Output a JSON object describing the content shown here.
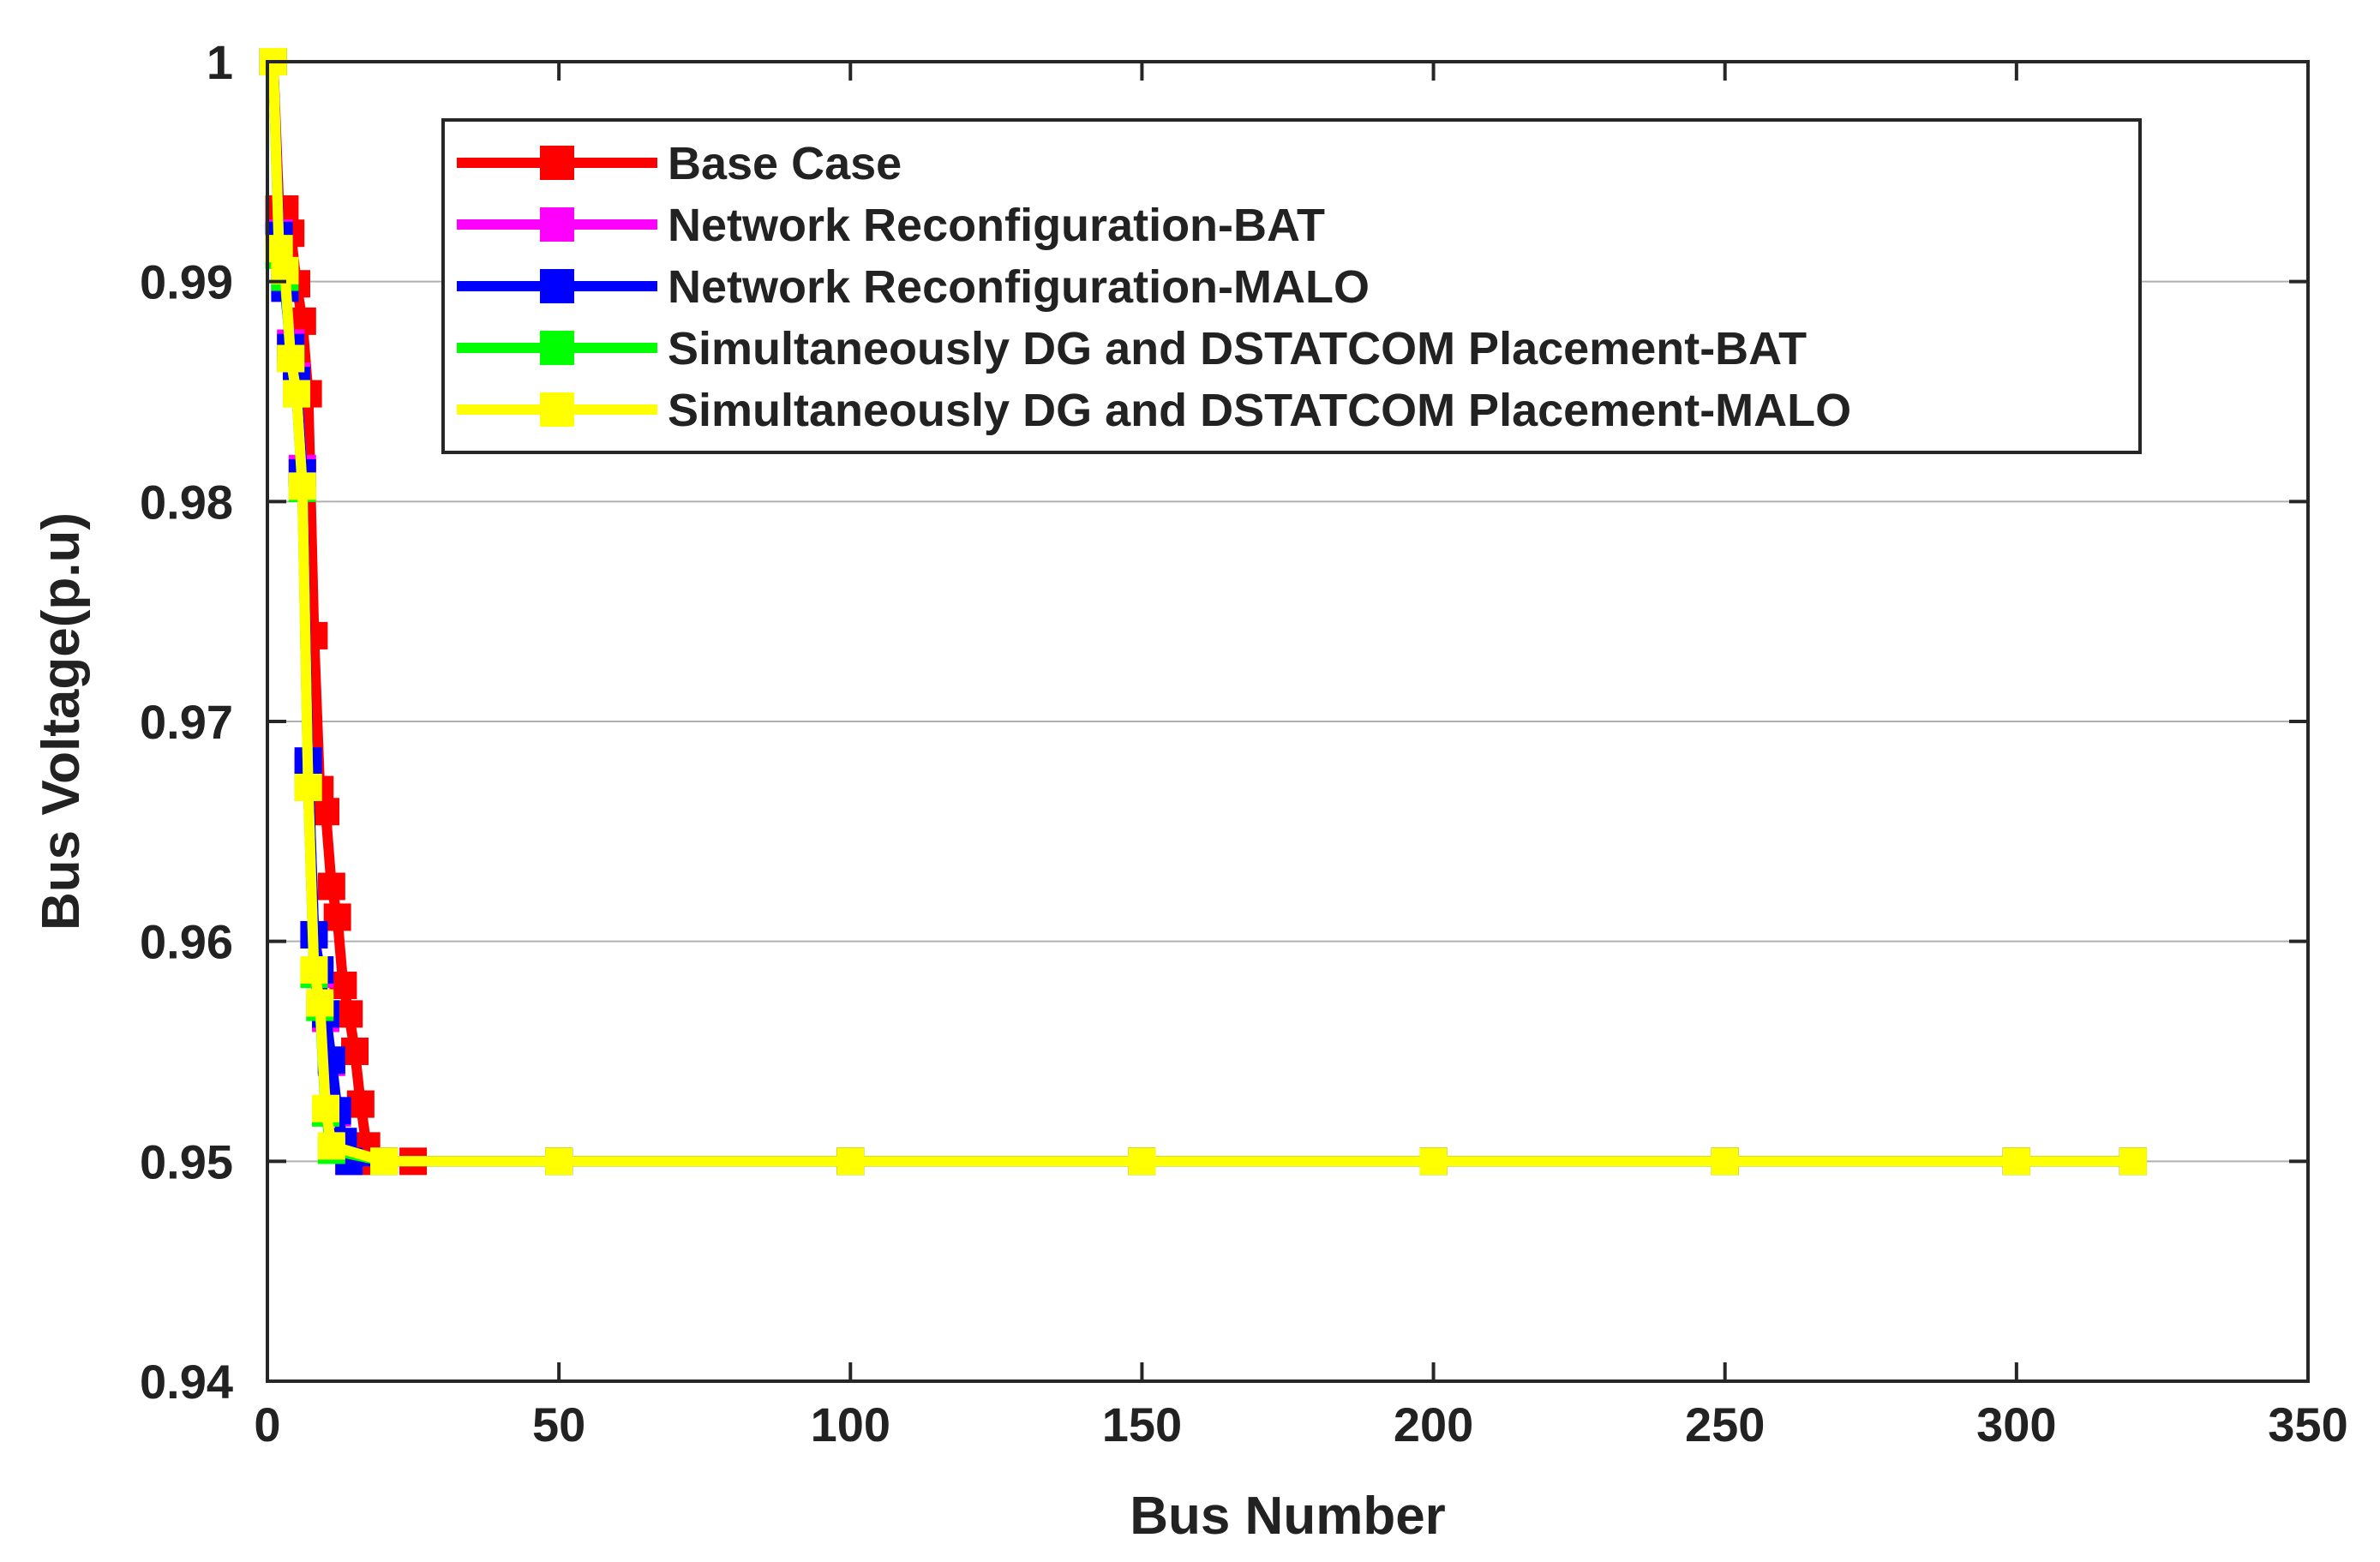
{
  "chart_data": {
    "type": "line",
    "xlabel": "Bus Number",
    "ylabel": "Bus Voltage(p.u)",
    "xlim": [
      0,
      350
    ],
    "ylim": [
      0.94,
      1.0
    ],
    "xticks": [
      0,
      50,
      100,
      150,
      200,
      250,
      300,
      350
    ],
    "xtick_labels": [
      "0",
      "50",
      "100",
      "150",
      "200",
      "250",
      "300",
      "350"
    ],
    "yticks": [
      0.94,
      0.95,
      0.96,
      0.97,
      0.98,
      0.99,
      1.0
    ],
    "ytick_labels": [
      "0.94",
      "0.95",
      "0.96",
      "0.97",
      "0.98",
      "0.99",
      "1"
    ],
    "grid": "horizontal",
    "legend_position": "top-right",
    "series": [
      {
        "name": "Base Case",
        "color": "#ff0000",
        "marker": "square",
        "x": [
          1,
          2,
          3,
          4,
          5,
          6,
          7,
          8,
          9,
          10,
          11,
          12,
          13,
          14,
          15,
          16,
          17,
          18,
          20,
          25,
          50,
          100,
          150,
          200,
          250,
          300,
          320
        ],
        "y": [
          1.0,
          0.9933,
          0.9933,
          0.9922,
          0.9899,
          0.9882,
          0.9849,
          0.9739,
          0.9669,
          0.9659,
          0.9625,
          0.9611,
          0.958,
          0.9567,
          0.955,
          0.9526,
          0.9507,
          0.95,
          0.95,
          0.95,
          0.95,
          0.95,
          0.95,
          0.95,
          0.95,
          0.95,
          0.95
        ]
      },
      {
        "name": "Network Reconfiguration-BAT",
        "color": "#ff00ff",
        "marker": "square",
        "x": [
          1,
          2,
          3,
          4,
          5,
          6,
          7,
          8,
          9,
          10,
          11,
          12,
          13,
          14,
          20,
          50,
          100,
          150,
          200,
          250,
          300,
          320
        ],
        "y": [
          1.0,
          0.9922,
          0.9899,
          0.9872,
          0.9857,
          0.9815,
          0.968,
          0.9603,
          0.9585,
          0.9565,
          0.9545,
          0.9522,
          0.9508,
          0.95,
          0.95,
          0.95,
          0.95,
          0.95,
          0.95,
          0.95,
          0.95,
          0.95
        ]
      },
      {
        "name": "Network Reconfiguration-MALO",
        "color": "#0000ff",
        "marker": "square",
        "x": [
          1,
          2,
          3,
          4,
          5,
          6,
          7,
          8,
          9,
          10,
          11,
          12,
          13,
          14,
          20,
          50,
          100,
          150,
          200,
          250,
          300,
          320
        ],
        "y": [
          1.0,
          0.9921,
          0.9897,
          0.987,
          0.9855,
          0.9813,
          0.9682,
          0.9603,
          0.9587,
          0.9567,
          0.9546,
          0.9523,
          0.9509,
          0.95,
          0.95,
          0.95,
          0.95,
          0.95,
          0.95,
          0.95,
          0.95,
          0.95
        ]
      },
      {
        "name": "Simultaneously DG and DSTATCOM Placement-BAT",
        "color": "#00ff00",
        "marker": "square",
        "x": [
          1,
          2,
          3,
          4,
          5,
          6,
          7,
          8,
          9,
          10,
          11,
          20,
          50,
          100,
          150,
          200,
          250,
          300,
          320
        ],
        "y": [
          1.0,
          0.9912,
          0.9902,
          0.9865,
          0.9849,
          0.9806,
          0.967,
          0.9585,
          0.957,
          0.9522,
          0.9505,
          0.95,
          0.95,
          0.95,
          0.95,
          0.95,
          0.95,
          0.95,
          0.95
        ]
      },
      {
        "name": "Simultaneously DG and DSTATCOM Placement-MALO",
        "color": "#ffff00",
        "marker": "square",
        "x": [
          1,
          2,
          3,
          4,
          5,
          6,
          7,
          8,
          9,
          10,
          11,
          20,
          50,
          100,
          150,
          200,
          250,
          300,
          320
        ],
        "y": [
          1.0,
          0.9915,
          0.9905,
          0.9865,
          0.9849,
          0.9807,
          0.967,
          0.9587,
          0.9572,
          0.9524,
          0.9507,
          0.95,
          0.95,
          0.95,
          0.95,
          0.95,
          0.95,
          0.95,
          0.95
        ]
      }
    ]
  }
}
